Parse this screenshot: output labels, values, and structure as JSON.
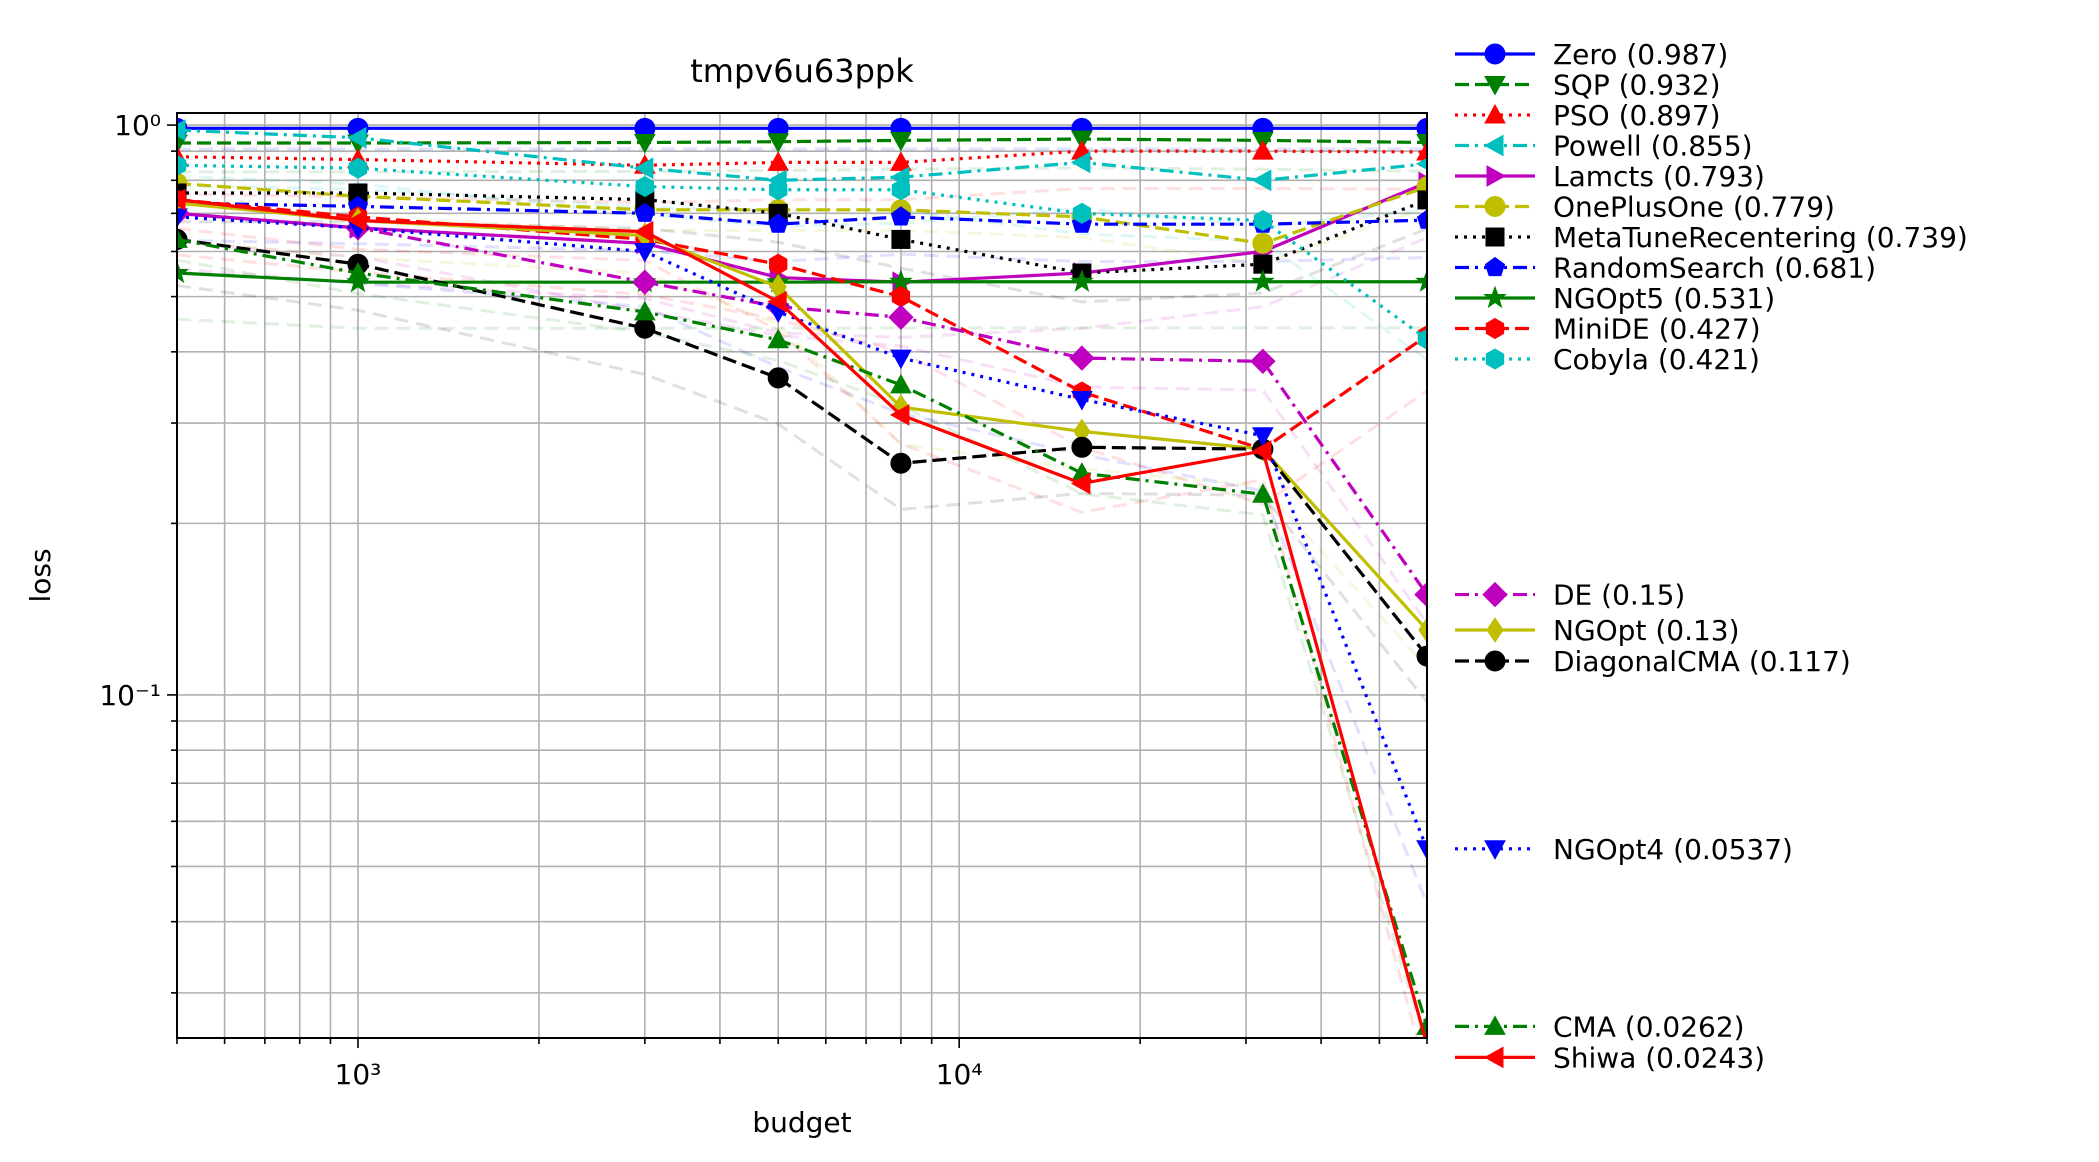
{
  "chart_data": {
    "type": "line",
    "title": "tmpv6u63ppk",
    "xlabel": "budget",
    "ylabel": "loss",
    "xscale": "log",
    "yscale": "log",
    "xlim": [
      500,
      60000
    ],
    "ylim": [
      0.025,
      1.05
    ],
    "grid": true,
    "legend_position": "outside-right",
    "x_tick_labels": [
      "10³",
      "10⁴"
    ],
    "y_tick_labels": [
      "10⁰",
      "10⁻¹"
    ],
    "x": [
      500,
      1000,
      3000,
      5000,
      8000,
      16000,
      32000,
      60000
    ],
    "series": [
      {
        "name": "Zero (0.987)",
        "color": "#0000ff",
        "dash": "solid",
        "marker": "circle",
        "values": [
          0.987,
          0.987,
          0.987,
          0.987,
          0.987,
          0.987,
          0.987,
          0.987
        ]
      },
      {
        "name": "SQP (0.932)",
        "color": "#008000",
        "dash": "dashed",
        "marker": "triangle-down",
        "values": [
          0.93,
          0.93,
          0.932,
          0.935,
          0.94,
          0.945,
          0.94,
          0.932
        ]
      },
      {
        "name": "PSO (0.897)",
        "color": "#ff0000",
        "dash": "dotted",
        "marker": "triangle-up",
        "values": [
          0.88,
          0.87,
          0.85,
          0.86,
          0.86,
          0.9,
          0.9,
          0.897
        ]
      },
      {
        "name": "Powell (0.855)",
        "color": "#00bfbf",
        "dash": "dashdot",
        "marker": "triangle-left",
        "values": [
          0.98,
          0.95,
          0.84,
          0.8,
          0.81,
          0.86,
          0.8,
          0.855
        ]
      },
      {
        "name": "Lamcts (0.793)",
        "color": "#bf00bf",
        "dash": "solid",
        "marker": "triangle-right",
        "values": [
          0.7,
          0.66,
          0.62,
          0.54,
          0.53,
          0.55,
          0.6,
          0.793
        ]
      },
      {
        "name": "OnePlusOne (0.779)",
        "color": "#bfbf00",
        "dash": "dashed",
        "marker": "circle",
        "values": [
          0.79,
          0.75,
          0.71,
          0.71,
          0.71,
          0.69,
          0.62,
          0.779
        ]
      },
      {
        "name": "MetaTuneRecentering (0.739)",
        "color": "#000000",
        "dash": "dotted",
        "marker": "square",
        "values": [
          0.76,
          0.76,
          0.74,
          0.7,
          0.63,
          0.55,
          0.57,
          0.739
        ]
      },
      {
        "name": "RandomSearch (0.681)",
        "color": "#0000ff",
        "dash": "dashdot",
        "marker": "pentagon",
        "values": [
          0.73,
          0.72,
          0.7,
          0.67,
          0.69,
          0.67,
          0.67,
          0.681
        ]
      },
      {
        "name": "NGOpt5 (0.531)",
        "color": "#008000",
        "dash": "solid",
        "marker": "star",
        "values": [
          0.55,
          0.53,
          0.53,
          0.53,
          0.531,
          0.531,
          0.531,
          0.531
        ]
      },
      {
        "name": "MiniDE (0.427)",
        "color": "#ff0000",
        "dash": "dashed",
        "marker": "hexagon",
        "values": [
          0.74,
          0.69,
          0.63,
          0.57,
          0.5,
          0.34,
          0.27,
          0.427
        ]
      },
      {
        "name": "Cobyla (0.421)",
        "color": "#00bfbf",
        "dash": "dotted",
        "marker": "hexagon",
        "values": [
          0.85,
          0.84,
          0.78,
          0.77,
          0.77,
          0.7,
          0.68,
          0.421
        ]
      },
      {
        "name": "DE (0.15)",
        "color": "#bf00bf",
        "dash": "dashdot",
        "marker": "diamond",
        "values": [
          0.7,
          0.66,
          0.53,
          0.48,
          0.46,
          0.39,
          0.385,
          0.15
        ]
      },
      {
        "name": "NGOpt (0.13)",
        "color": "#bfbf00",
        "dash": "solid",
        "marker": "thin-diamond",
        "values": [
          0.73,
          0.68,
          0.64,
          0.52,
          0.32,
          0.29,
          0.27,
          0.13
        ]
      },
      {
        "name": "DiagonalCMA (0.117)",
        "color": "#000000",
        "dash": "dashed",
        "marker": "circle",
        "values": [
          0.63,
          0.57,
          0.44,
          0.36,
          0.255,
          0.272,
          0.27,
          0.117
        ]
      },
      {
        "name": "NGOpt4 (0.0537)",
        "color": "#0000ff",
        "dash": "dotted",
        "marker": "triangle-down",
        "values": [
          0.69,
          0.66,
          0.6,
          0.47,
          0.39,
          0.33,
          0.285,
          0.0537
        ]
      },
      {
        "name": "CMA (0.0262)",
        "color": "#008000",
        "dash": "dashdot",
        "marker": "triangle-up",
        "values": [
          0.63,
          0.55,
          0.47,
          0.42,
          0.35,
          0.245,
          0.225,
          0.0262
        ]
      },
      {
        "name": "Shiwa (0.0243)",
        "color": "#ff0000",
        "dash": "solid",
        "marker": "triangle-left",
        "values": [
          0.74,
          0.68,
          0.65,
          0.49,
          0.31,
          0.235,
          0.268,
          0.0243
        ]
      }
    ]
  }
}
